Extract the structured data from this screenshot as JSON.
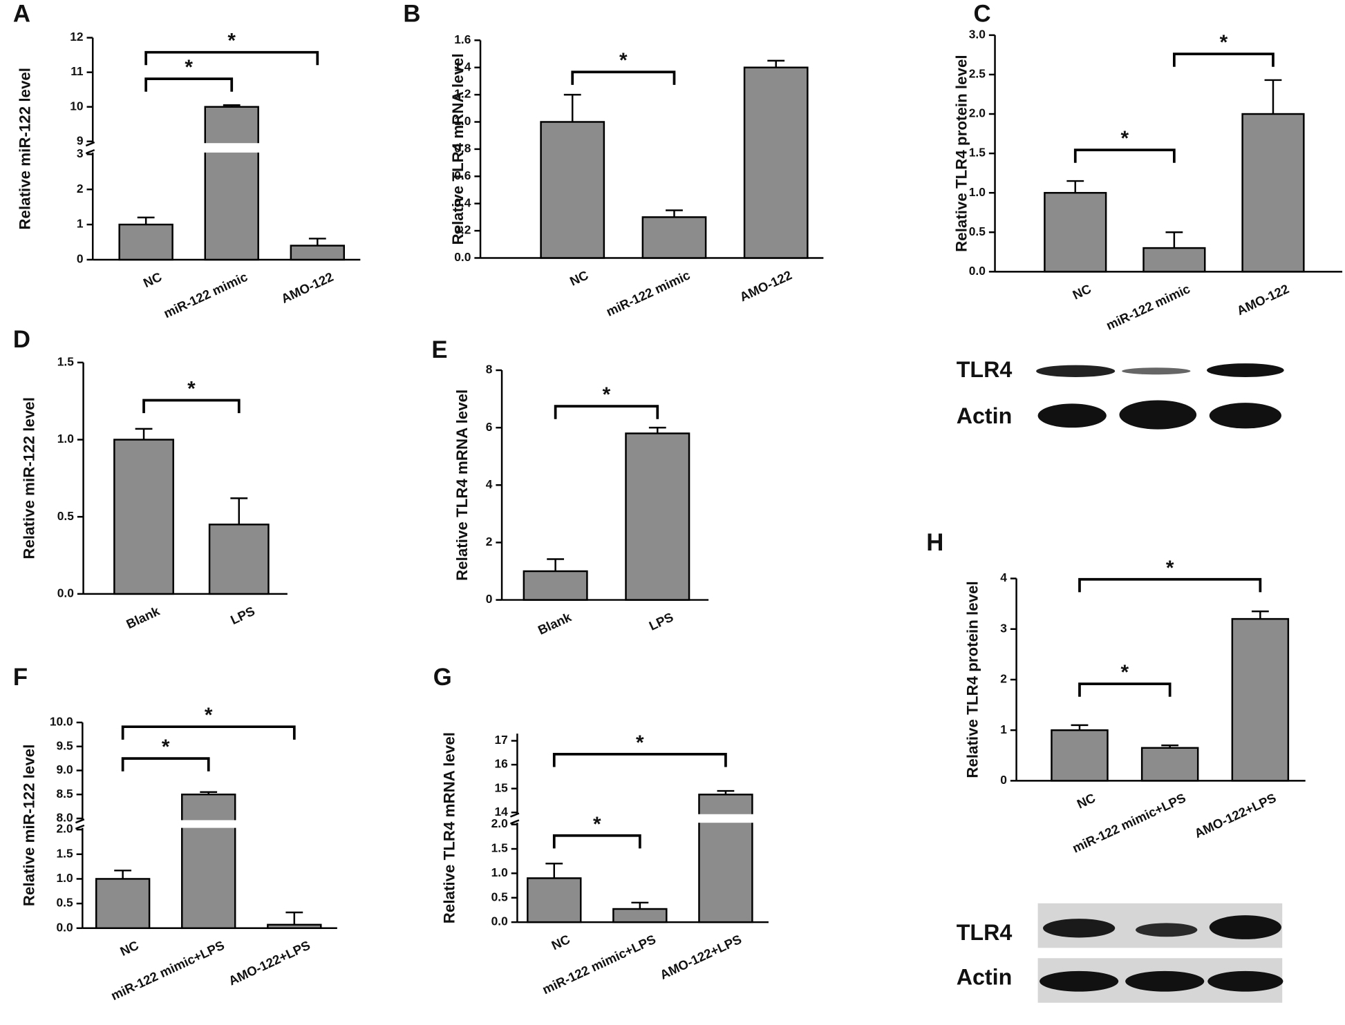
{
  "chart_data": [
    {
      "type": "bar",
      "panel": "A",
      "ylabel": "Relative miR-122 level",
      "categories": [
        "NC",
        "miR-122 mimic",
        "AMO-122"
      ],
      "values": [
        1.0,
        10.0,
        0.4
      ],
      "errors": [
        0.2,
        0.05,
        0.2
      ],
      "color": "#8c8c8c",
      "ylim": [
        0,
        12
      ],
      "axis_break": [
        3,
        9
      ],
      "yticks": [
        0,
        1,
        2,
        3,
        9,
        10,
        11,
        12
      ],
      "significance": [
        {
          "pair": [
            0,
            1
          ],
          "label": "*"
        },
        {
          "pair": [
            0,
            2
          ],
          "label": "*"
        }
      ]
    },
    {
      "type": "bar",
      "panel": "B",
      "ylabel": "Relative TLR4 mRNA level",
      "categories": [
        "NC",
        "miR-122 mimic",
        "AMO-122"
      ],
      "values": [
        1.0,
        0.3,
        1.4
      ],
      "errors": [
        0.2,
        0.05,
        0.05
      ],
      "color": "#8c8c8c",
      "ylim": [
        0,
        1.6
      ],
      "yticks": [
        {
          "value": 0,
          "label": "0.0"
        },
        0.2,
        0.4,
        0.6,
        0.8,
        {
          "value": 1,
          "label": "1.0"
        },
        1.2,
        1.4,
        1.6
      ],
      "significance": [
        {
          "pair": [
            0,
            1
          ],
          "label": "*"
        }
      ]
    },
    {
      "type": "bar",
      "panel": "C",
      "ylabel": "Relative TLR4 protein level",
      "categories": [
        "NC",
        "miR-122 mimic",
        "AMO-122"
      ],
      "values": [
        1.0,
        0.3,
        2.0
      ],
      "errors": [
        0.15,
        0.2,
        0.43
      ],
      "color": "#8c8c8c",
      "ylim": [
        0,
        3
      ],
      "yticks": [
        {
          "value": 0,
          "label": "0.0"
        },
        0.5,
        {
          "value": 1,
          "label": "1.0"
        },
        1.5,
        {
          "value": 2,
          "label": "2.0"
        },
        2.5,
        {
          "value": 3,
          "label": "3.0"
        }
      ],
      "significance": [
        {
          "pair": [
            0,
            1
          ],
          "label": "*"
        },
        {
          "pair": [
            1,
            2
          ],
          "label": "*"
        }
      ],
      "blot": [
        "TLR4",
        "Actin"
      ]
    },
    {
      "type": "bar",
      "panel": "D",
      "ylabel": "Relative miR-122 level",
      "categories": [
        "Blank",
        "LPS"
      ],
      "values": [
        1.0,
        0.45
      ],
      "errors": [
        0.07,
        0.17
      ],
      "color": "#8c8c8c",
      "ylim": [
        0,
        1.5
      ],
      "yticks": [
        {
          "value": 0,
          "label": "0.0"
        },
        0.5,
        {
          "value": 1,
          "label": "1.0"
        },
        1.5
      ],
      "significance": [
        {
          "pair": [
            0,
            1
          ],
          "label": "*"
        }
      ]
    },
    {
      "type": "bar",
      "panel": "E",
      "ylabel": "Relative TLR4 mRNA level",
      "categories": [
        "Blank",
        "LPS"
      ],
      "values": [
        1.0,
        5.8
      ],
      "errors": [
        0.42,
        0.2
      ],
      "color": "#8c8c8c",
      "ylim": [
        0,
        8
      ],
      "yticks": [
        0,
        2,
        4,
        6,
        8
      ],
      "significance": [
        {
          "pair": [
            0,
            1
          ],
          "label": "*"
        }
      ]
    },
    {
      "type": "bar",
      "panel": "F",
      "ylabel": "Relative miR-122 level",
      "categories": [
        "NC",
        "miR-122 mimic+LPS",
        "AMO-122+LPS"
      ],
      "values": [
        1.0,
        8.5,
        0.07
      ],
      "errors": [
        0.17,
        0.05,
        0.25
      ],
      "color": "#8c8c8c",
      "ylim": [
        0,
        10
      ],
      "axis_break": [
        2,
        8
      ],
      "yticks": [
        {
          "value": 0,
          "label": "0.0"
        },
        0.5,
        {
          "value": 1,
          "label": "1.0"
        },
        1.5,
        {
          "value": 2,
          "label": "2.0"
        },
        {
          "value": 8,
          "label": "8.0"
        },
        8.5,
        {
          "value": 9,
          "label": "9.0"
        },
        9.5,
        {
          "value": 10,
          "label": "10.0"
        }
      ],
      "significance": [
        {
          "pair": [
            0,
            1
          ],
          "label": "*"
        },
        {
          "pair": [
            0,
            2
          ],
          "label": "*"
        }
      ]
    },
    {
      "type": "bar",
      "panel": "G",
      "ylabel": "Relative TLR4 mRNA level",
      "categories": [
        "NC",
        "miR-122 mimic+LPS",
        "AMO-122+LPS"
      ],
      "values": [
        0.9,
        0.27,
        14.75
      ],
      "errors": [
        0.3,
        0.13,
        0.15
      ],
      "color": "#8c8c8c",
      "ylim": [
        0,
        17.3
      ],
      "axis_break": [
        2,
        14
      ],
      "yticks": [
        {
          "value": 0,
          "label": "0.0"
        },
        0.5,
        {
          "value": 1,
          "label": "1.0"
        },
        1.5,
        {
          "value": 2,
          "label": "2.0"
        },
        14,
        15,
        16,
        17
      ],
      "significance": [
        {
          "pair": [
            0,
            1
          ],
          "label": "*"
        },
        {
          "pair": [
            0,
            2
          ],
          "label": "*"
        }
      ]
    },
    {
      "type": "bar",
      "panel": "H",
      "ylabel": "Relative TLR4 protein level",
      "categories": [
        "NC",
        "miR-122 mimic+LPS",
        "AMO-122+LPS"
      ],
      "values": [
        1.0,
        0.65,
        3.2
      ],
      "errors": [
        0.1,
        0.05,
        0.15
      ],
      "color": "#8c8c8c",
      "ylim": [
        0,
        4
      ],
      "yticks": [
        0,
        1,
        2,
        3,
        4
      ],
      "significance": [
        {
          "pair": [
            0,
            1
          ],
          "label": "*"
        },
        {
          "pair": [
            0,
            2
          ],
          "label": "*"
        }
      ],
      "blot": [
        "TLR4",
        "Actin"
      ]
    }
  ]
}
